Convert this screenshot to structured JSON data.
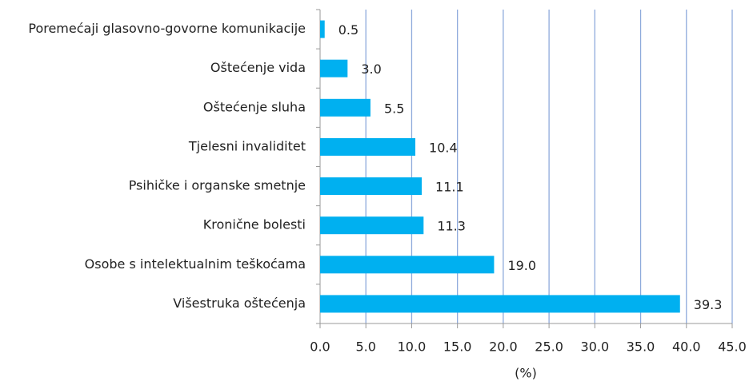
{
  "chart_data": {
    "type": "barh",
    "categories": [
      "Poremećaji glasovno-govorne komunikacije",
      "Oštećenje vida",
      "Oštećenje sluha",
      "Tjelesni invaliditet",
      "Psihičke i organske smetnje",
      "Kronične bolesti",
      "Osobe s intelektualnim teškoćama",
      "Višestruka oštećenja"
    ],
    "values": [
      0.5,
      3.0,
      5.5,
      10.4,
      11.1,
      11.3,
      19.0,
      39.3
    ],
    "value_labels": [
      "0.5",
      "3.0",
      "5.5",
      "10.4",
      "11.1",
      "11.3",
      "19.0",
      "39.3"
    ],
    "color": "#00b0f0",
    "xlabel": "(%)",
    "xlim": [
      0,
      45
    ],
    "xticks": [
      {
        "value": 0,
        "label": "0.0"
      },
      {
        "value": 5,
        "label": "5.0"
      },
      {
        "value": 10,
        "label": "10.0"
      },
      {
        "value": 15,
        "label": "15.0"
      },
      {
        "value": 20,
        "label": "20.0"
      },
      {
        "value": 25,
        "label": "25.0"
      },
      {
        "value": 30,
        "label": "30.0"
      },
      {
        "value": 35,
        "label": "35.0"
      },
      {
        "value": 40,
        "label": "40.0"
      },
      {
        "value": 45,
        "label": "45.0"
      }
    ],
    "grid": true
  }
}
